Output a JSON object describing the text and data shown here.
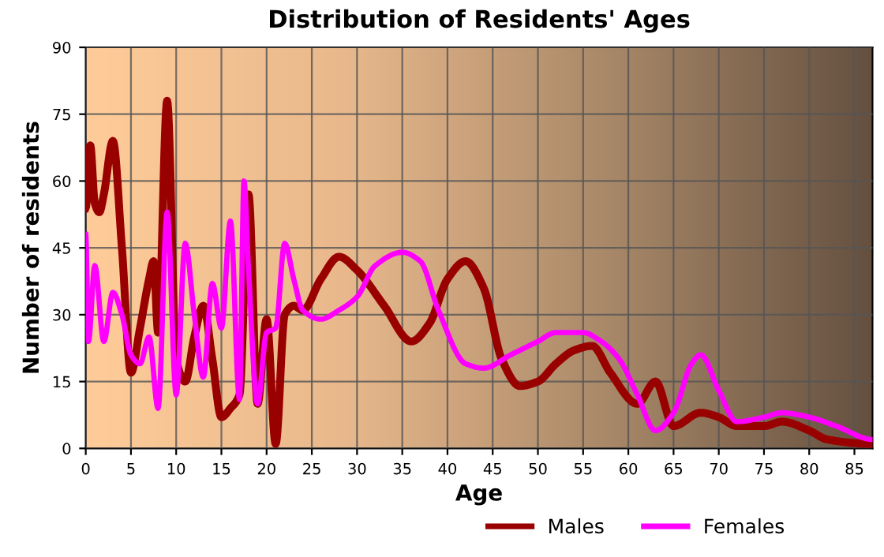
{
  "chart_data": {
    "type": "line",
    "title": "Distribution of Residents' Ages",
    "xlabel": "Age",
    "ylabel": "Number of residents",
    "xlim": [
      0,
      87
    ],
    "ylim": [
      0,
      90
    ],
    "xticks": [
      0,
      5,
      10,
      15,
      20,
      25,
      30,
      35,
      40,
      45,
      50,
      55,
      60,
      65,
      70,
      75,
      80,
      85
    ],
    "yticks": [
      0,
      15,
      30,
      45,
      60,
      75,
      90
    ],
    "grid": true,
    "legend": "bottom",
    "line_style": "solid",
    "series": [
      {
        "name": "Males",
        "color": "#990000",
        "x": [
          0,
          0.5,
          1,
          1.5,
          2,
          3,
          4,
          5,
          6,
          7,
          7.5,
          8,
          9,
          10,
          11,
          12,
          13,
          14,
          15,
          16,
          17,
          18,
          19,
          20,
          21,
          22,
          23,
          24,
          26,
          28,
          30,
          33,
          36,
          38,
          40,
          42,
          44,
          46,
          48,
          50,
          52,
          54,
          56,
          58,
          61,
          63,
          65,
          68,
          70,
          72,
          75,
          77,
          80,
          82,
          87
        ],
        "values": [
          54,
          68,
          55,
          53,
          57,
          69,
          45,
          17,
          27,
          38,
          42,
          26,
          78,
          20,
          15,
          25,
          32,
          20,
          7,
          9,
          12,
          57,
          10,
          29,
          1,
          30,
          32,
          31,
          38,
          43,
          40,
          32,
          24,
          28,
          38,
          42,
          36,
          20,
          14,
          15,
          19,
          22,
          23,
          17,
          10,
          15,
          5,
          8,
          7,
          5,
          5,
          6,
          4,
          2,
          1
        ]
      },
      {
        "name": "Females",
        "color": "#ff00ff",
        "x": [
          0,
          0.3,
          1,
          2,
          3,
          4,
          5,
          6,
          7,
          8,
          9,
          10,
          11,
          12,
          13,
          14,
          15,
          16,
          17,
          17.5,
          18,
          19,
          20,
          21,
          22,
          23,
          24,
          26,
          28,
          30,
          32,
          35,
          37,
          39,
          42,
          44,
          47,
          50,
          52,
          55,
          57,
          59,
          61,
          63,
          65,
          67,
          68,
          70,
          72,
          75,
          77,
          80,
          83,
          87
        ],
        "values": [
          48,
          24,
          41,
          24,
          35,
          30,
          21,
          19,
          25,
          9,
          53,
          12,
          46,
          30,
          16,
          37,
          27,
          51,
          11,
          60,
          40,
          10,
          26,
          27,
          46,
          38,
          31,
          29,
          31,
          34,
          41,
          44,
          42,
          31,
          19,
          18,
          21,
          24,
          26,
          26,
          24,
          20,
          12,
          4,
          8,
          19,
          21,
          13,
          6,
          7,
          8,
          7,
          5,
          2
        ]
      }
    ]
  }
}
